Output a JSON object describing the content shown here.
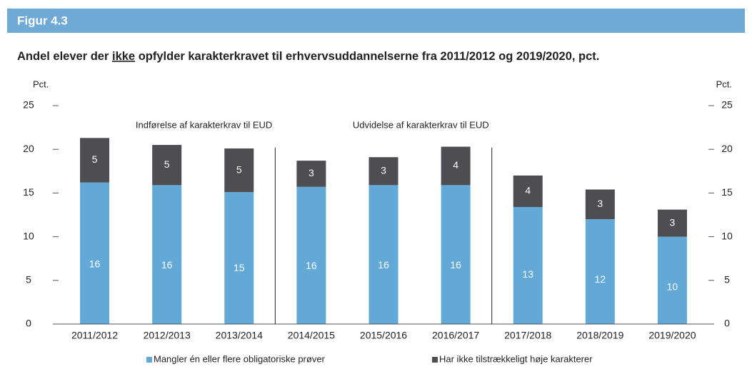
{
  "figure_label": "Figur 4.3",
  "chart_data": {
    "type": "stacked_bar",
    "title": [
      "Andel elever der",
      "ikke",
      "opfylder karakterkravet til erhvervsuddannelserne fra 2011/2012 og 2019/2020, pct."
    ],
    "title_underlined": 1,
    "ylabel": "Pct.",
    "y2label": "Pct.",
    "categories": [
      "2011/2012",
      "2012/2013",
      "2013/2014",
      "2014/2015",
      "2015/2016",
      "2016/2017",
      "2017/2018",
      "2018/2019",
      "2019/2020"
    ],
    "series": [
      {
        "name": "Mangler én eller flere obligatoriske prøver",
        "color": "#63a9d8",
        "values": [
          16.2,
          15.9,
          15.1,
          15.7,
          15.9,
          15.9,
          13.4,
          12.0,
          10.0
        ],
        "value_labels": [
          "16",
          "16",
          "15",
          "16",
          "16",
          "16",
          "13",
          "12",
          "10"
        ]
      },
      {
        "name": "Har ikke tilstrækkeligt høje karakterer",
        "color": "#4d4d52",
        "values": [
          5.1,
          4.6,
          5.0,
          3.0,
          3.2,
          4.4,
          3.6,
          3.4,
          3.1
        ],
        "value_labels": [
          "5",
          "5",
          "5",
          "3",
          "3",
          "4",
          "4",
          "3",
          "3"
        ]
      }
    ],
    "annotations": [
      {
        "text": "Indførelse af karakterkrav til EUD",
        "x": 2.5
      },
      {
        "text": "Udvidelse af karakterkrav til EUD",
        "x": 5.5
      }
    ],
    "ylim": [
      0,
      25
    ],
    "yticks": [
      0,
      5,
      10,
      15,
      20,
      25
    ],
    "y2lim": [
      0,
      25
    ],
    "y2ticks": [
      0,
      5,
      10,
      15,
      20,
      25
    ],
    "legend": "bottom"
  }
}
